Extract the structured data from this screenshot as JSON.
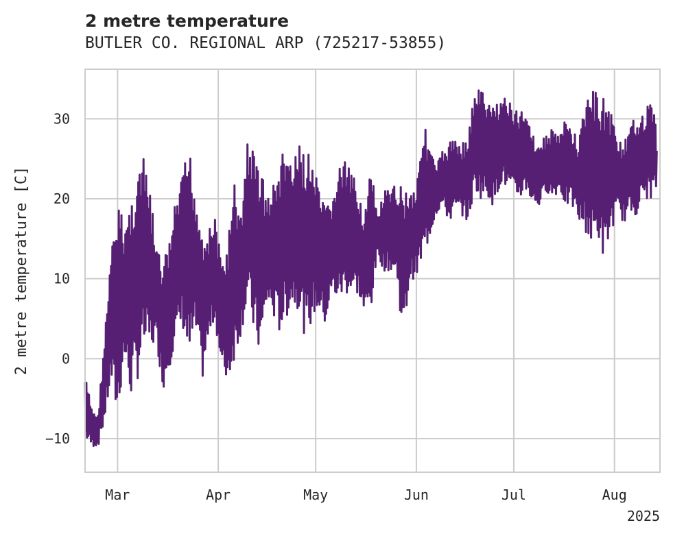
{
  "chart_data": {
    "type": "line",
    "title": "2 metre temperature",
    "subtitle": "BUTLER CO. REGIONAL ARP (725217-53855)",
    "xlabel": "",
    "ylabel": "2 metre temperature [C]",
    "x_tick_labels": [
      "Mar",
      "Apr",
      "May",
      "Jun",
      "Jul",
      "Aug"
    ],
    "x_year_label": "2025",
    "xlim": [
      "2025-02-19",
      "2025-08-15"
    ],
    "ylim": [
      -14.2,
      36.2
    ],
    "y_ticks": [
      -10,
      0,
      10,
      20,
      30
    ],
    "grid": true,
    "series": [
      {
        "color": "#561f73",
        "x": [
          "2025-02-19",
          "2025-02-21",
          "2025-02-23",
          "2025-02-25",
          "2025-02-27",
          "2025-03-01",
          "2025-03-03",
          "2025-03-05",
          "2025-03-07",
          "2025-03-09",
          "2025-03-11",
          "2025-03-13",
          "2025-03-15",
          "2025-03-17",
          "2025-03-19",
          "2025-03-21",
          "2025-03-23",
          "2025-03-25",
          "2025-03-27",
          "2025-03-29",
          "2025-03-31",
          "2025-04-02",
          "2025-04-04",
          "2025-04-06",
          "2025-04-08",
          "2025-04-10",
          "2025-04-12",
          "2025-04-14",
          "2025-04-16",
          "2025-04-18",
          "2025-04-20",
          "2025-04-22",
          "2025-04-24",
          "2025-04-26",
          "2025-04-28",
          "2025-04-30",
          "2025-05-02",
          "2025-05-04",
          "2025-05-06",
          "2025-05-08",
          "2025-05-10",
          "2025-05-12",
          "2025-05-14",
          "2025-05-16",
          "2025-05-18",
          "2025-05-20",
          "2025-05-22",
          "2025-05-24",
          "2025-05-26",
          "2025-05-28",
          "2025-05-30",
          "2025-06-01",
          "2025-06-03",
          "2025-06-05",
          "2025-06-07",
          "2025-06-09",
          "2025-06-11",
          "2025-06-13",
          "2025-06-15",
          "2025-06-17",
          "2025-06-19",
          "2025-06-21",
          "2025-06-23",
          "2025-06-25",
          "2025-06-27",
          "2025-06-29",
          "2025-07-01",
          "2025-07-03",
          "2025-07-05",
          "2025-07-07",
          "2025-07-09",
          "2025-07-11",
          "2025-07-13",
          "2025-07-15",
          "2025-07-17",
          "2025-07-19",
          "2025-07-21",
          "2025-07-23",
          "2025-07-25",
          "2025-07-27",
          "2025-07-29",
          "2025-07-31",
          "2025-08-02",
          "2025-08-04",
          "2025-08-06",
          "2025-08-08",
          "2025-08-10",
          "2025-08-12",
          "2025-08-14"
        ],
        "y_high": [
          -2,
          -6,
          -7,
          3,
          13,
          20,
          17,
          20,
          24,
          25,
          21,
          14,
          12,
          15,
          20,
          23,
          27,
          21,
          17,
          16,
          18,
          12,
          15,
          22,
          18,
          28,
          26,
          25,
          20,
          22,
          25,
          27,
          24,
          27,
          26,
          25,
          21,
          19,
          20,
          24,
          25,
          23,
          22,
          18,
          24,
          18,
          21,
          21,
          22,
          22,
          21,
          22,
          30,
          27,
          24,
          26,
          27,
          28,
          27,
          28,
          34,
          34,
          32,
          32,
          33,
          33,
          31,
          31,
          32,
          28,
          27,
          28,
          29,
          28,
          30,
          29,
          27,
          33,
          34,
          33,
          33,
          31,
          28,
          27,
          29,
          31,
          31,
          32,
          31
        ],
        "y_low": [
          -10,
          -11,
          -11,
          -8,
          -3,
          -8,
          0,
          -5,
          -3,
          1,
          1,
          2,
          -4,
          -1,
          2,
          4,
          -1,
          3,
          -3,
          2,
          5,
          -2,
          -3,
          0,
          3,
          7,
          3,
          0,
          7,
          5,
          3,
          5,
          7,
          6,
          2,
          5,
          6,
          4,
          8,
          7,
          8,
          8,
          8,
          5,
          6,
          13,
          11,
          11,
          10,
          2,
          10,
          10,
          12,
          15,
          18,
          19,
          17,
          18,
          18,
          17,
          21,
          20,
          20,
          19,
          22,
          21,
          20,
          20,
          21,
          19,
          19,
          21,
          20,
          21,
          19,
          19,
          17,
          16,
          14,
          15,
          12,
          16,
          18,
          17,
          18,
          18,
          20,
          20,
          21
        ]
      }
    ]
  }
}
